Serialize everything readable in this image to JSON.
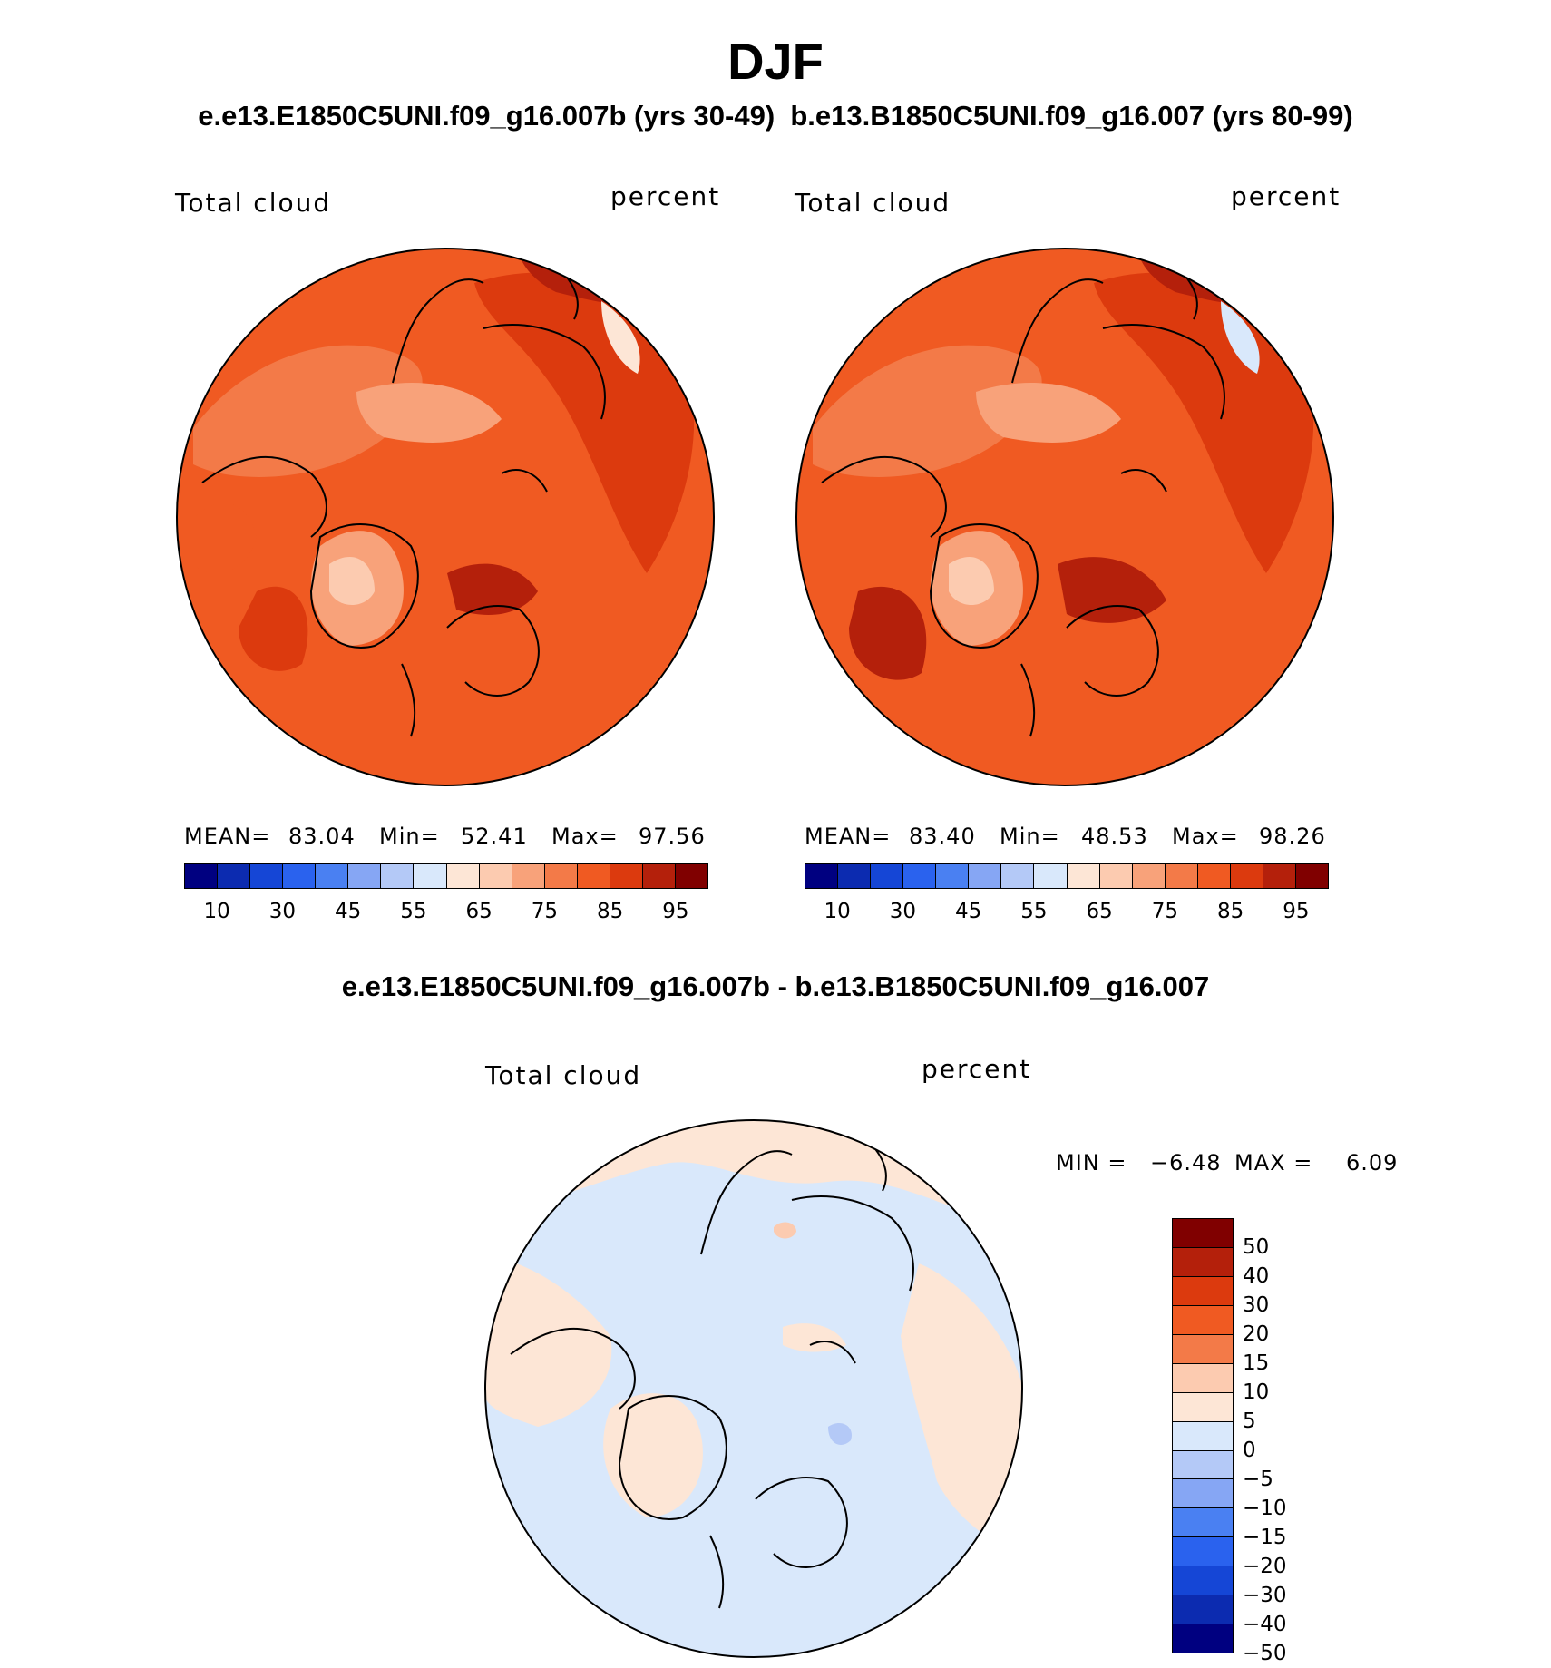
{
  "title": "DJF",
  "subtitle": "e.e13.E1850C5UNI.f09_g16.007b (yrs 30-49)  b.e13.B1850C5UNI.f09_g16.007 (yrs 80-99)",
  "diff_title": "e.e13.E1850C5UNI.f09_g16.007b - b.e13.B1850C5UNI.f09_g16.007",
  "panels": [
    {
      "variable": "Total cloud",
      "units": "percent",
      "mean_label": "MEAN=",
      "mean": "83.04",
      "min_label": "Min=",
      "min": "52.41",
      "max_label": "Max=",
      "max": "97.56"
    },
    {
      "variable": "Total cloud",
      "units": "percent",
      "mean_label": "MEAN=",
      "mean": "83.40",
      "min_label": "Min=",
      "min": "48.53",
      "max_label": "Max=",
      "max": "98.26"
    }
  ],
  "diff_panel": {
    "variable": "Total cloud",
    "units": "percent",
    "min_label": "MIN =",
    "min": "−6.48",
    "max_label": "MAX =",
    "max": "6.09"
  },
  "abs_colorbar": {
    "colors": [
      "#000080",
      "#0c2bb0",
      "#1546d6",
      "#2a62ee",
      "#4a80f2",
      "#86a6f4",
      "#b4c9f7",
      "#d9e8fb",
      "#fde6d6",
      "#fccbb0",
      "#f8a27a",
      "#f37a48",
      "#f05a22",
      "#dc3a0e",
      "#b4200b",
      "#800000"
    ],
    "tick_labels": [
      "10",
      "30",
      "45",
      "55",
      "65",
      "75",
      "85",
      "95"
    ]
  },
  "diff_colorbar": {
    "colors": [
      "#800000",
      "#b4200b",
      "#dc3a0e",
      "#f05a22",
      "#f37a48",
      "#fccbb0",
      "#fde6d6",
      "#d9e8fb",
      "#b4c9f7",
      "#86a6f4",
      "#4a80f2",
      "#2a62ee",
      "#1546d6",
      "#0c2bb0",
      "#000080"
    ],
    "tick_labels": [
      "50",
      "40",
      "30",
      "20",
      "15",
      "10",
      "5",
      "0",
      "−5",
      "−10",
      "−15",
      "−20",
      "−30",
      "−40",
      "−50"
    ]
  },
  "chart_data": {
    "type": "map",
    "projection": "north polar stereographic",
    "season": "DJF",
    "field": "Total cloud (percent)",
    "maps": [
      {
        "case": "e.e13.E1850C5UNI.f09_g16.007b (yrs 30-49)",
        "mean": 83.04,
        "min": 52.41,
        "max": 97.56,
        "levels": [
          10,
          15,
          20,
          25,
          30,
          35,
          40,
          45,
          50,
          55,
          60,
          65,
          70,
          75,
          80,
          85,
          90,
          95
        ]
      },
      {
        "case": "b.e13.B1850C5UNI.f09_g16.007 (yrs 80-99)",
        "mean": 83.4,
        "min": 48.53,
        "max": 98.26
      },
      {
        "case": "difference",
        "min": -6.48,
        "max": 6.09,
        "levels": [
          -50,
          -40,
          -30,
          -20,
          -15,
          -10,
          -5,
          0,
          5,
          10,
          15,
          20,
          30,
          40,
          50
        ]
      }
    ]
  }
}
